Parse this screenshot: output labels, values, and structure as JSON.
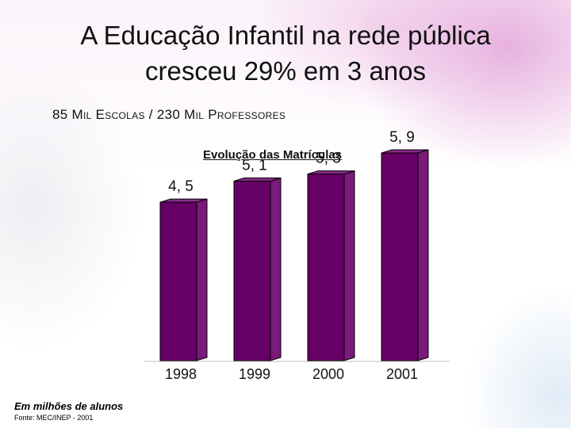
{
  "slide": {
    "title_line1": "A Educação Infantil na rede pública",
    "title_line2": "cresceu 29% em 3 anos",
    "subtitle": "85 Mil Escolas / 230 Mil Professores",
    "footnote": "Em milhões de alunos",
    "source": "Fonte: MEC/INEP - 2001"
  },
  "colors": {
    "bar_front": "#660066",
    "bar_side": "#7a1a7a",
    "bar_top": "#8a2a8a",
    "outline": "#000000"
  },
  "chart_data": {
    "type": "bar",
    "title": "Evolução das Matrículas",
    "categories": [
      "1998",
      "1999",
      "2000",
      "2001"
    ],
    "values": [
      4.5,
      5.1,
      5.3,
      5.9
    ],
    "value_labels": [
      "4, 5",
      "5, 1",
      "5, 3",
      "5, 9"
    ],
    "xlabel": "",
    "ylabel": "",
    "grid": false,
    "legend": "none"
  }
}
